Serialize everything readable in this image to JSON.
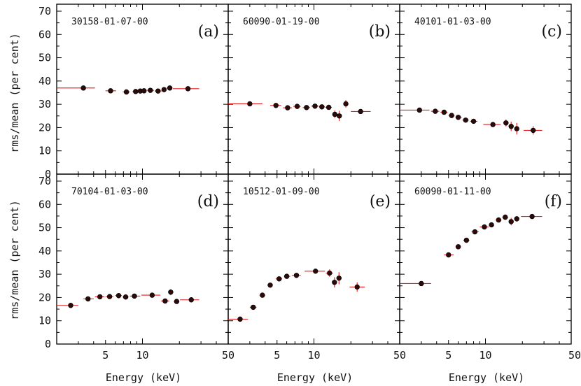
{
  "figure": {
    "xlabel": "Energy (keV)",
    "ylabel": "rms/mean (per cent)",
    "x_tick_labels": [
      "5",
      "10",
      "50"
    ],
    "y_tick_labels": [
      "0",
      "10",
      "20",
      "30",
      "40",
      "50",
      "60",
      "70"
    ],
    "colors": {
      "points": "#2b0a0a",
      "errorbars": "#e31a1c",
      "axes": "#000000"
    }
  },
  "chart_data": [
    {
      "type": "scatter",
      "panel": "(a)",
      "obsid": "30158-01-07-00",
      "xscale": "log",
      "xlim": [
        2,
        50
      ],
      "ylim": [
        0,
        73
      ],
      "points": [
        {
          "x": 3.3,
          "y": 37,
          "xlo": 2,
          "xhi": 4.1,
          "yerr": 0.8
        },
        {
          "x": 5.5,
          "y": 35.8,
          "xlo": 5.0,
          "xhi": 6.1,
          "yerr": 0.7
        },
        {
          "x": 7.4,
          "y": 35.3,
          "xlo": 6.9,
          "xhi": 7.9,
          "yerr": 0.6
        },
        {
          "x": 8.8,
          "y": 35.5,
          "xlo": 8.3,
          "xhi": 9.3,
          "yerr": 0.6
        },
        {
          "x": 9.6,
          "y": 35.7,
          "xlo": 9.3,
          "xhi": 9.9,
          "yerr": 0.6
        },
        {
          "x": 10.3,
          "y": 35.8,
          "xlo": 9.9,
          "xhi": 10.8,
          "yerr": 0.6
        },
        {
          "x": 11.6,
          "y": 36,
          "xlo": 10.9,
          "xhi": 12.4,
          "yerr": 0.7
        },
        {
          "x": 13.4,
          "y": 35.7,
          "xlo": 12.6,
          "xhi": 14.3,
          "yerr": 0.7
        },
        {
          "x": 15.0,
          "y": 36.3,
          "xlo": 14.4,
          "xhi": 15.7,
          "yerr": 0.8
        },
        {
          "x": 16.7,
          "y": 37,
          "xlo": 15.8,
          "xhi": 17.6,
          "yerr": 0.9
        },
        {
          "x": 23.5,
          "y": 36.7,
          "xlo": 17.7,
          "xhi": 29,
          "yerr": 0.9
        }
      ]
    },
    {
      "type": "scatter",
      "panel": "(b)",
      "obsid": "60090-01-19-00",
      "xscale": "log",
      "xlim": [
        2,
        50
      ],
      "ylim": [
        0,
        73
      ],
      "points": [
        {
          "x": 3.0,
          "y": 30.2,
          "xlo": 2,
          "xhi": 3.8,
          "yerr": 0.7
        },
        {
          "x": 4.9,
          "y": 29.5,
          "xlo": 4.4,
          "xhi": 5.4,
          "yerr": 0.6
        },
        {
          "x": 6.1,
          "y": 28.5,
          "xlo": 5.6,
          "xhi": 6.6,
          "yerr": 0.6
        },
        {
          "x": 7.3,
          "y": 29.1,
          "xlo": 6.8,
          "xhi": 7.8,
          "yerr": 0.6
        },
        {
          "x": 8.7,
          "y": 28.6,
          "xlo": 8.1,
          "xhi": 9.3,
          "yerr": 0.6
        },
        {
          "x": 10.2,
          "y": 29.2,
          "xlo": 9.5,
          "xhi": 10.9,
          "yerr": 0.6
        },
        {
          "x": 11.6,
          "y": 28.9,
          "xlo": 11.0,
          "xhi": 12.3,
          "yerr": 0.7
        },
        {
          "x": 13.2,
          "y": 28.7,
          "xlo": 12.4,
          "xhi": 14.0,
          "yerr": 0.8
        },
        {
          "x": 14.8,
          "y": 25.7,
          "xlo": 14.2,
          "xhi": 15.5,
          "yerr": 1.6
        },
        {
          "x": 16.1,
          "y": 25,
          "xlo": 15.6,
          "xhi": 16.7,
          "yerr": 2.2
        },
        {
          "x": 18.2,
          "y": 30.2,
          "xlo": 17.4,
          "xhi": 19.0,
          "yerr": 1.6
        },
        {
          "x": 24.0,
          "y": 26.9,
          "xlo": 20,
          "xhi": 29,
          "yerr": 0.9
        }
      ]
    },
    {
      "type": "scatter",
      "panel": "(c)",
      "obsid": "40101-01-03-00",
      "xscale": "log",
      "xlim": [
        2,
        50
      ],
      "ylim": [
        0,
        73
      ],
      "points": [
        {
          "x": 2.9,
          "y": 27.5,
          "xlo": 2,
          "xhi": 3.5,
          "yerr": 0.7
        },
        {
          "x": 3.9,
          "y": 27,
          "xlo": 3.6,
          "xhi": 4.2,
          "yerr": 0.6
        },
        {
          "x": 4.6,
          "y": 26.6,
          "xlo": 4.3,
          "xhi": 4.9,
          "yerr": 0.6
        },
        {
          "x": 5.3,
          "y": 25.2,
          "xlo": 5.0,
          "xhi": 5.6,
          "yerr": 0.6
        },
        {
          "x": 6.0,
          "y": 24.4,
          "xlo": 5.7,
          "xhi": 6.4,
          "yerr": 0.6
        },
        {
          "x": 6.9,
          "y": 23.2,
          "xlo": 6.5,
          "xhi": 7.3,
          "yerr": 0.6
        },
        {
          "x": 8.0,
          "y": 22.7,
          "xlo": 7.5,
          "xhi": 8.6,
          "yerr": 0.6
        },
        {
          "x": 11.5,
          "y": 21.3,
          "xlo": 9.6,
          "xhi": 13.3,
          "yerr": 0.7
        },
        {
          "x": 14.7,
          "y": 22,
          "xlo": 14.0,
          "xhi": 15.4,
          "yerr": 1.5
        },
        {
          "x": 16.2,
          "y": 20.5,
          "xlo": 15.6,
          "xhi": 16.8,
          "yerr": 2.0
        },
        {
          "x": 18.0,
          "y": 19.5,
          "xlo": 17.2,
          "xhi": 18.8,
          "yerr": 2.5
        },
        {
          "x": 24.5,
          "y": 18.8,
          "xlo": 20.5,
          "xhi": 29,
          "yerr": 1.8
        }
      ]
    },
    {
      "type": "scatter",
      "panel": "(d)",
      "obsid": "70104-01-03-00",
      "xscale": "log",
      "xlim": [
        2,
        50
      ],
      "ylim": [
        0,
        73
      ],
      "points": [
        {
          "x": 2.6,
          "y": 16.6,
          "xlo": 2,
          "xhi": 3.0,
          "yerr": 0.5
        },
        {
          "x": 3.6,
          "y": 19.4,
          "xlo": 3.3,
          "xhi": 4.0,
          "yerr": 0.6
        },
        {
          "x": 4.5,
          "y": 20.3,
          "xlo": 4.1,
          "xhi": 4.9,
          "yerr": 0.6
        },
        {
          "x": 5.4,
          "y": 20.4,
          "xlo": 5.0,
          "xhi": 5.8,
          "yerr": 0.6
        },
        {
          "x": 6.4,
          "y": 20.8,
          "xlo": 6.0,
          "xhi": 6.8,
          "yerr": 0.6
        },
        {
          "x": 7.3,
          "y": 20.2,
          "xlo": 6.9,
          "xhi": 7.7,
          "yerr": 0.6
        },
        {
          "x": 8.6,
          "y": 20.6,
          "xlo": 7.9,
          "xhi": 9.6,
          "yerr": 0.6
        },
        {
          "x": 12.0,
          "y": 21,
          "xlo": 9.8,
          "xhi": 14.0,
          "yerr": 0.7
        },
        {
          "x": 15.3,
          "y": 18.5,
          "xlo": 14.2,
          "xhi": 16.5,
          "yerr": 1.0
        },
        {
          "x": 17.0,
          "y": 22.3,
          "xlo": 16.6,
          "xhi": 17.5,
          "yerr": 1.3
        },
        {
          "x": 19.0,
          "y": 18.3,
          "xlo": 18.0,
          "xhi": 20.0,
          "yerr": 1.0
        },
        {
          "x": 25.0,
          "y": 19,
          "xlo": 20.2,
          "xhi": 29,
          "yerr": 0.7
        }
      ]
    },
    {
      "type": "scatter",
      "panel": "(e)",
      "obsid": "10512-01-09-00",
      "xscale": "log",
      "xlim": [
        2,
        50
      ],
      "ylim": [
        0,
        73
      ],
      "points": [
        {
          "x": 2.5,
          "y": 10.7,
          "xlo": 2,
          "xhi": 2.9,
          "yerr": 0.5
        },
        {
          "x": 3.2,
          "y": 15.8,
          "xlo": 3.0,
          "xhi": 3.4,
          "yerr": 0.6
        },
        {
          "x": 3.8,
          "y": 21,
          "xlo": 3.6,
          "xhi": 4.0,
          "yerr": 0.6
        },
        {
          "x": 4.4,
          "y": 25.3,
          "xlo": 4.2,
          "xhi": 4.6,
          "yerr": 0.7
        },
        {
          "x": 5.2,
          "y": 28,
          "xlo": 4.9,
          "xhi": 5.5,
          "yerr": 0.7
        },
        {
          "x": 6.0,
          "y": 29.1,
          "xlo": 5.7,
          "xhi": 6.4,
          "yerr": 0.7
        },
        {
          "x": 7.2,
          "y": 29.5,
          "xlo": 6.6,
          "xhi": 7.8,
          "yerr": 0.7
        },
        {
          "x": 10.3,
          "y": 31.3,
          "xlo": 8.4,
          "xhi": 12.3,
          "yerr": 0.8
        },
        {
          "x": 13.4,
          "y": 30.5,
          "xlo": 12.5,
          "xhi": 14.3,
          "yerr": 1.6
        },
        {
          "x": 14.7,
          "y": 26.5,
          "xlo": 14.4,
          "xhi": 15.1,
          "yerr": 2.2
        },
        {
          "x": 16.0,
          "y": 28.3,
          "xlo": 15.3,
          "xhi": 16.7,
          "yerr": 2.6
        },
        {
          "x": 22.5,
          "y": 24.5,
          "xlo": 19.5,
          "xhi": 26,
          "yerr": 2.0
        }
      ]
    },
    {
      "type": "scatter",
      "panel": "(f)",
      "obsid": "60090-01-11-00",
      "xscale": "log",
      "xlim": [
        2,
        50
      ],
      "ylim": [
        0,
        73
      ],
      "points": [
        {
          "x": 3.0,
          "y": 26,
          "xlo": 2,
          "xhi": 3.6,
          "yerr": 0.7
        },
        {
          "x": 5.0,
          "y": 38.3,
          "xlo": 4.6,
          "xhi": 5.5,
          "yerr": 0.9
        },
        {
          "x": 6.0,
          "y": 41.8,
          "xlo": 5.7,
          "xhi": 6.3,
          "yerr": 0.9
        },
        {
          "x": 7.0,
          "y": 44.6,
          "xlo": 6.6,
          "xhi": 7.4,
          "yerr": 0.9
        },
        {
          "x": 8.2,
          "y": 48.2,
          "xlo": 7.7,
          "xhi": 8.8,
          "yerr": 0.9
        },
        {
          "x": 9.8,
          "y": 50.3,
          "xlo": 9.0,
          "xhi": 10.6,
          "yerr": 1.0
        },
        {
          "x": 11.2,
          "y": 51.2,
          "xlo": 10.8,
          "xhi": 11.6,
          "yerr": 1.0
        },
        {
          "x": 12.8,
          "y": 53.3,
          "xlo": 12.1,
          "xhi": 13.5,
          "yerr": 1.0
        },
        {
          "x": 14.5,
          "y": 54.5,
          "xlo": 13.7,
          "xhi": 15.3,
          "yerr": 1.2
        },
        {
          "x": 16.2,
          "y": 52.6,
          "xlo": 15.5,
          "xhi": 16.9,
          "yerr": 1.6
        },
        {
          "x": 18.0,
          "y": 53.8,
          "xlo": 17.2,
          "xhi": 18.8,
          "yerr": 1.2
        },
        {
          "x": 24.0,
          "y": 54.8,
          "xlo": 19.5,
          "xhi": 29,
          "yerr": 0.8
        }
      ]
    }
  ]
}
